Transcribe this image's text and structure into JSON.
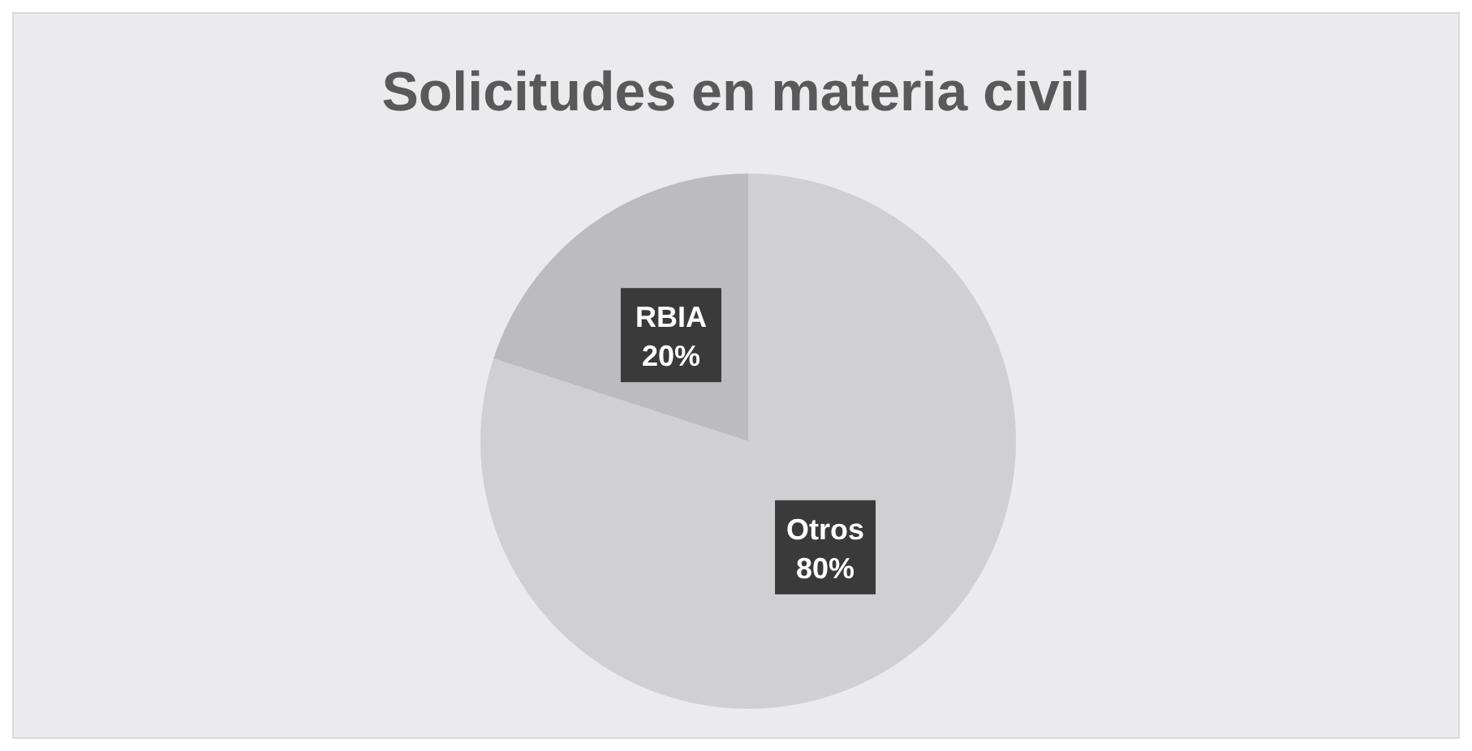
{
  "chart_data": {
    "type": "pie",
    "title": "Solicitudes en materia civil",
    "categories": [
      "Otros",
      "RBIA"
    ],
    "values": [
      80,
      20
    ],
    "value_labels": [
      "80%",
      "20%"
    ],
    "colors": [
      "#d0d0d2",
      "#bcbcbf"
    ],
    "legend": false
  }
}
